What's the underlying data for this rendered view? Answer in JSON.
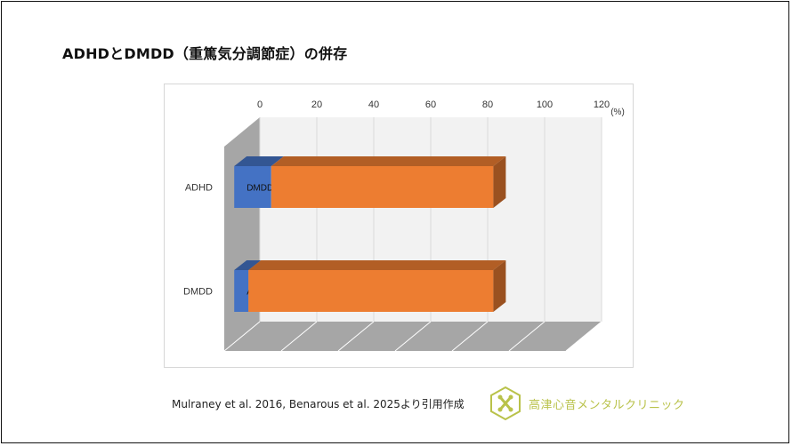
{
  "page": {
    "title": "ADHDとDMDD（重篤気分調節症）の併存",
    "citation": "Mulraney et al. 2016, Benarous et al. 2025より引用作成",
    "clinic_name": "高津心音メンタルクリニック"
  },
  "colors": {
    "blue": "#4472c4",
    "orange": "#ed7d31",
    "wall": "#f2f2f2",
    "side_wall": "#a6a6a6",
    "floor": "#a6a6a6",
    "logo": "#b9c24a"
  },
  "chart_data": {
    "type": "bar",
    "orientation": "horizontal",
    "stacked": true,
    "three_d": true,
    "x_axis_position": "top",
    "xlim": [
      0,
      120
    ],
    "x_ticks": [
      "0",
      "20",
      "40",
      "60",
      "80",
      "100",
      "120"
    ],
    "x_unit_label": "(%)",
    "categories": [
      "ADHD",
      "DMDD"
    ],
    "series": [
      {
        "color": "#4472c4",
        "values": [
          13,
          5
        ],
        "data_labels": [
          "DMDD",
          "ADHD"
        ]
      },
      {
        "color": "#ed7d31",
        "values": [
          78,
          86
        ]
      }
    ],
    "grid": true,
    "legend": "none"
  }
}
